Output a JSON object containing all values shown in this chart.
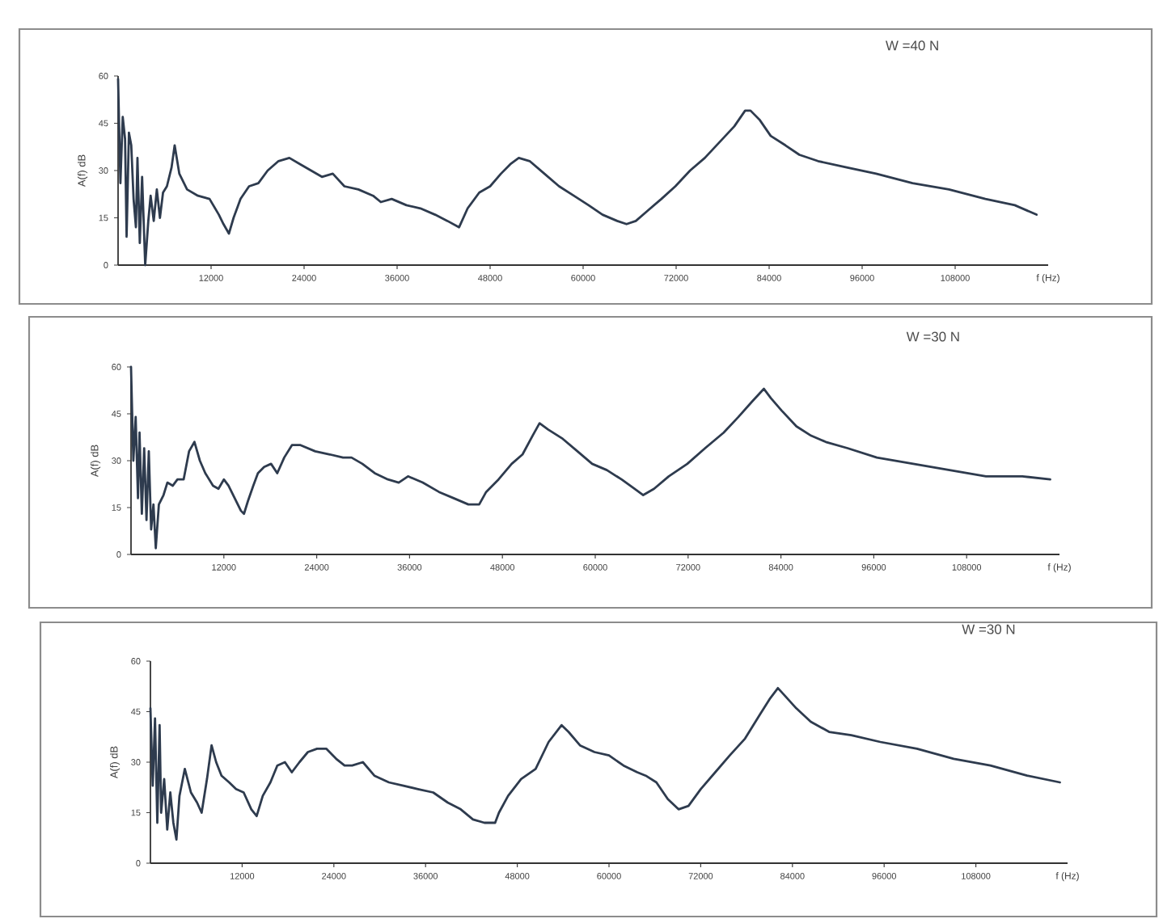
{
  "chart_data": [
    {
      "type": "line",
      "title": "W =40 N",
      "xlabel": "f (Hz)",
      "ylabel": "A(f) dB",
      "color": "#2e3b4e",
      "xlim": [
        0,
        120000
      ],
      "ylim": [
        0,
        60
      ],
      "xticks": [
        12000,
        24000,
        36000,
        48000,
        60000,
        72000,
        84000,
        96000,
        108000
      ],
      "yticks": [
        0,
        15,
        30,
        45,
        60
      ],
      "x": [
        0,
        300,
        600,
        900,
        1100,
        1400,
        1700,
        2000,
        2300,
        2500,
        2800,
        3100,
        3500,
        3900,
        4200,
        4600,
        5000,
        5400,
        5800,
        6300,
        6900,
        7300,
        7900,
        8900,
        10300,
        11800,
        13000,
        13600,
        14300,
        14900,
        15800,
        16900,
        18100,
        19300,
        20700,
        22100,
        23500,
        24900,
        26300,
        27700,
        29200,
        31000,
        32900,
        33900,
        35300,
        37200,
        39000,
        40900,
        42500,
        44000,
        45100,
        46600,
        48000,
        49400,
        50600,
        51700,
        53100,
        55000,
        56900,
        58800,
        60700,
        62500,
        64400,
        65600,
        66800,
        68200,
        70100,
        71900,
        73800,
        75700,
        77600,
        79500,
        80900,
        81600,
        82800,
        84200,
        86100,
        87900,
        90300,
        94000,
        97800,
        102500,
        107200,
        111900,
        115700,
        118500
      ],
      "values": [
        59,
        26,
        47,
        40,
        9,
        42,
        38,
        21,
        12,
        34,
        7,
        28,
        0,
        14,
        22,
        14,
        24,
        15,
        23,
        25,
        31,
        38,
        29,
        24,
        22,
        21,
        16,
        13,
        10,
        15,
        21,
        25,
        26,
        30,
        33,
        34,
        32,
        30,
        28,
        29,
        25,
        24,
        22,
        20,
        21,
        19,
        18,
        16,
        14,
        12,
        18,
        23,
        25,
        29,
        32,
        34,
        33,
        29,
        25,
        22,
        19,
        16,
        14,
        13,
        14,
        17,
        21,
        25,
        30,
        34,
        39,
        44,
        49,
        49,
        46,
        41,
        38,
        35,
        33,
        31,
        29,
        26,
        24,
        21,
        19,
        16
      ]
    },
    {
      "type": "line",
      "title": "W =30 N",
      "xlabel": "f (Hz)",
      "ylabel": "A(f) dB",
      "color": "#2e3b4e",
      "xlim": [
        0,
        120000
      ],
      "ylim": [
        0,
        60
      ],
      "xticks": [
        12000,
        24000,
        36000,
        48000,
        60000,
        72000,
        84000,
        96000,
        108000
      ],
      "yticks": [
        0,
        15,
        30,
        45,
        60
      ],
      "x": [
        0,
        300,
        600,
        900,
        1100,
        1400,
        1700,
        2000,
        2300,
        2600,
        2900,
        3200,
        3600,
        4200,
        4700,
        5400,
        6000,
        6800,
        7500,
        8200,
        8900,
        9600,
        10600,
        11300,
        12000,
        12600,
        13400,
        14200,
        14600,
        15100,
        15800,
        16400,
        17200,
        18100,
        18900,
        19800,
        20800,
        21900,
        23800,
        25700,
        27400,
        28500,
        29900,
        31500,
        33200,
        34600,
        35800,
        37700,
        39800,
        41700,
        43600,
        45000,
        45900,
        47500,
        49200,
        50600,
        51900,
        52800,
        53900,
        55800,
        57700,
        59600,
        61500,
        63400,
        65100,
        66200,
        67600,
        69500,
        71900,
        74200,
        76600,
        78500,
        80300,
        81800,
        82700,
        84100,
        86000,
        87900,
        89800,
        92600,
        96400,
        101100,
        105800,
        110500,
        115200,
        118800
      ],
      "values": [
        60,
        30,
        44,
        18,
        39,
        13,
        34,
        11,
        33,
        8,
        16,
        2,
        16,
        19,
        23,
        22,
        24,
        24,
        33,
        36,
        30,
        26,
        22,
        21,
        24,
        22,
        18,
        14,
        13,
        17,
        22,
        26,
        28,
        29,
        26,
        31,
        35,
        35,
        33,
        32,
        31,
        31,
        29,
        26,
        24,
        23,
        25,
        23,
        20,
        18,
        16,
        16,
        20,
        24,
        29,
        32,
        38,
        42,
        40,
        37,
        33,
        29,
        27,
        24,
        21,
        19,
        21,
        25,
        29,
        34,
        39,
        44,
        49,
        53,
        50,
        46,
        41,
        38,
        36,
        34,
        31,
        29,
        27,
        25,
        25,
        24
      ]
    },
    {
      "type": "line",
      "title": "W =30 N",
      "xlabel": "f (Hz)",
      "ylabel": "A(f) dB",
      "color": "#2e3b4e",
      "xlim": [
        0,
        120000
      ],
      "ylim": [
        0,
        60
      ],
      "xticks": [
        12000,
        24000,
        36000,
        48000,
        60000,
        72000,
        84000,
        96000,
        108000
      ],
      "yticks": [
        0,
        15,
        30,
        45,
        60
      ],
      "x": [
        0,
        300,
        600,
        900,
        1200,
        1400,
        1800,
        2200,
        2600,
        3000,
        3400,
        3800,
        4500,
        5300,
        6100,
        6700,
        7400,
        8000,
        8600,
        9300,
        10300,
        11200,
        12200,
        13200,
        13900,
        14700,
        15700,
        16600,
        17600,
        18500,
        19500,
        20600,
        21800,
        23000,
        24300,
        25400,
        26400,
        27800,
        29300,
        31200,
        33100,
        35000,
        37000,
        38900,
        40600,
        42200,
        43700,
        45100,
        45600,
        46800,
        48500,
        50400,
        52100,
        53800,
        54700,
        56200,
        58100,
        60000,
        61900,
        63700,
        64800,
        66200,
        67700,
        69100,
        70400,
        72000,
        73900,
        75800,
        77800,
        79700,
        81100,
        82100,
        82900,
        84500,
        86400,
        88800,
        91700,
        95500,
        100300,
        105100,
        109900,
        114700,
        119000
      ],
      "values": [
        46,
        23,
        43,
        12,
        41,
        15,
        25,
        10,
        21,
        12,
        7,
        20,
        28,
        21,
        18,
        15,
        25,
        35,
        30,
        26,
        24,
        22,
        21,
        16,
        14,
        20,
        24,
        29,
        30,
        27,
        30,
        33,
        34,
        34,
        31,
        29,
        29,
        30,
        26,
        24,
        23,
        22,
        21,
        18,
        16,
        13,
        12,
        12,
        15,
        20,
        25,
        28,
        36,
        41,
        39,
        35,
        33,
        32,
        29,
        27,
        26,
        24,
        19,
        16,
        17,
        22,
        27,
        32,
        37,
        44,
        49,
        52,
        50,
        46,
        42,
        39,
        38,
        36,
        34,
        31,
        29,
        26,
        24
      ]
    }
  ]
}
